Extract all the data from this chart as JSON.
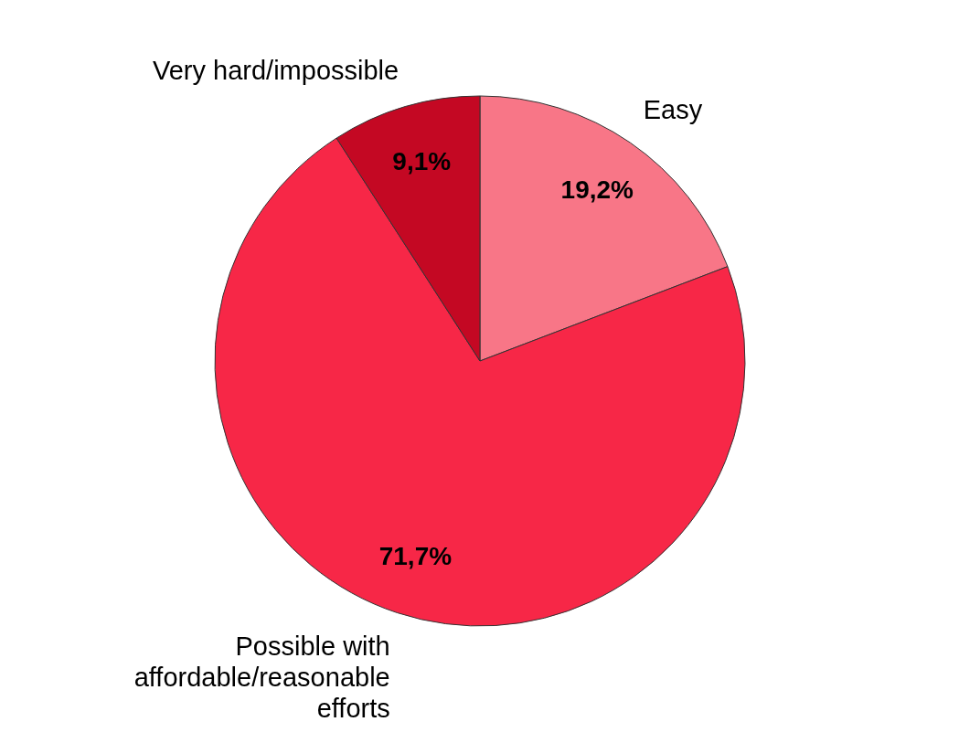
{
  "chart_data": {
    "type": "pie",
    "categories": [
      "Easy",
      "Possible with affordable/reasonable efforts",
      "Very hard/impossible"
    ],
    "values": [
      19.2,
      71.7,
      9.1
    ],
    "colors": [
      "#f87687",
      "#f72747",
      "#c40823"
    ],
    "value_labels": [
      "19,2%",
      "71,7%",
      "9,1%"
    ]
  }
}
